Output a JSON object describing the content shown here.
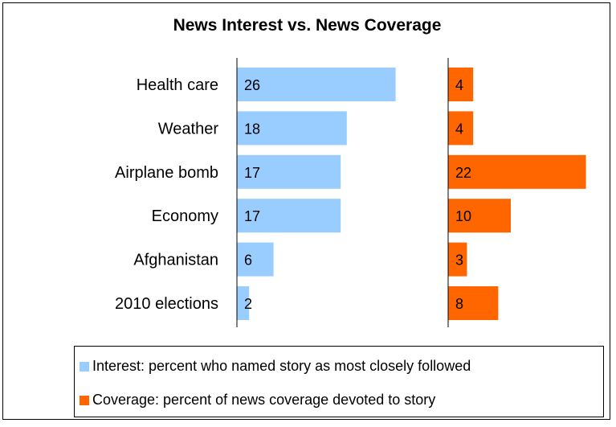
{
  "chart_data": {
    "type": "bar",
    "title": "News Interest vs. News Coverage",
    "categories": [
      "Health care",
      "Weather",
      "Airplane bomb",
      "Economy",
      "Afghanistan",
      "2010 elections"
    ],
    "series": [
      {
        "name": "Interest: percent who named story as most closely followed",
        "values": [
          26,
          18,
          17,
          17,
          6,
          2
        ],
        "color": "#99ccff"
      },
      {
        "name": "Coverage: percent of news coverage devoted to story",
        "values": [
          4,
          4,
          22,
          10,
          3,
          8
        ],
        "color": "#ff6600"
      }
    ],
    "orientation": "horizontal",
    "grid": false,
    "legend_position": "bottom"
  }
}
